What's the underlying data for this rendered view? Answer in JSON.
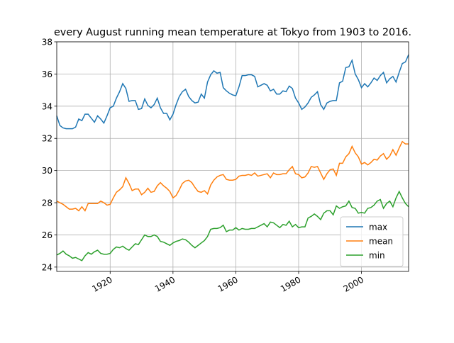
{
  "chart_data": {
    "type": "line",
    "title": "every August running mean temperature at Tokyo from 1903 to 2016.",
    "x_start": 1903,
    "series": [
      {
        "name": "max",
        "color": "#1f77b4",
        "values": [
          33.4,
          32.8,
          32.65,
          32.6,
          32.6,
          32.6,
          32.7,
          33.2,
          33.1,
          33.5,
          33.5,
          33.25,
          33.0,
          33.4,
          33.2,
          32.95,
          33.4,
          33.9,
          34.0,
          34.5,
          34.9,
          35.4,
          35.1,
          34.3,
          34.35,
          34.35,
          33.8,
          33.85,
          34.45,
          34.05,
          33.9,
          34.1,
          34.5,
          33.9,
          33.55,
          33.55,
          33.15,
          33.5,
          34.1,
          34.6,
          34.9,
          35.05,
          34.6,
          34.35,
          34.2,
          34.25,
          34.75,
          34.5,
          35.5,
          35.95,
          36.2,
          36.05,
          36.1,
          35.15,
          34.95,
          34.8,
          34.7,
          34.65,
          35.2,
          35.9,
          35.9,
          35.95,
          35.95,
          35.85,
          35.2,
          35.3,
          35.4,
          35.3,
          34.95,
          35.05,
          34.75,
          34.75,
          34.95,
          34.9,
          35.25,
          35.1,
          34.5,
          34.2,
          33.8,
          33.95,
          34.2,
          34.55,
          34.7,
          34.9,
          34.1,
          33.8,
          34.2,
          34.3,
          34.35,
          34.35,
          35.45,
          35.55,
          36.4,
          36.45,
          36.85,
          36.0,
          35.65,
          35.15,
          35.4,
          35.2,
          35.45,
          35.75,
          35.6,
          35.9,
          36.1,
          35.45,
          35.7,
          35.85,
          35.5,
          36.1,
          36.65,
          36.75,
          37.2
        ]
      },
      {
        "name": "mean",
        "color": "#ff7f0e",
        "values": [
          28.1,
          28.0,
          27.9,
          27.75,
          27.6,
          27.6,
          27.65,
          27.5,
          27.75,
          27.5,
          27.95,
          27.95,
          27.95,
          27.95,
          28.1,
          28.0,
          27.85,
          27.9,
          28.3,
          28.65,
          28.8,
          29.0,
          29.55,
          29.2,
          28.75,
          28.85,
          28.85,
          28.5,
          28.65,
          28.9,
          28.65,
          28.7,
          29.05,
          29.25,
          29.05,
          28.9,
          28.7,
          28.3,
          28.45,
          28.8,
          29.2,
          29.35,
          29.4,
          29.25,
          28.95,
          28.7,
          28.65,
          28.75,
          28.55,
          29.1,
          29.4,
          29.6,
          29.7,
          29.75,
          29.45,
          29.4,
          29.4,
          29.45,
          29.65,
          29.7,
          29.7,
          29.75,
          29.7,
          29.85,
          29.65,
          29.7,
          29.75,
          29.8,
          29.55,
          29.85,
          29.75,
          29.75,
          29.8,
          29.8,
          30.05,
          30.25,
          29.8,
          29.75,
          29.55,
          29.6,
          29.85,
          30.25,
          30.2,
          30.25,
          29.85,
          29.45,
          29.8,
          30.05,
          30.1,
          29.7,
          30.45,
          30.45,
          30.85,
          31.05,
          31.5,
          31.1,
          30.85,
          30.4,
          30.5,
          30.35,
          30.5,
          30.7,
          30.65,
          30.9,
          31.05,
          30.7,
          30.9,
          31.3,
          30.95,
          31.4,
          31.8,
          31.65,
          31.65
        ]
      },
      {
        "name": "min",
        "color": "#2ca02c",
        "values": [
          24.75,
          24.85,
          25.0,
          24.8,
          24.7,
          24.55,
          24.6,
          24.5,
          24.4,
          24.7,
          24.9,
          24.8,
          24.95,
          25.05,
          24.85,
          24.8,
          24.8,
          24.85,
          25.1,
          25.25,
          25.2,
          25.3,
          25.15,
          25.05,
          25.25,
          25.45,
          25.4,
          25.7,
          26.0,
          25.9,
          25.9,
          26.0,
          25.9,
          25.6,
          25.55,
          25.45,
          25.35,
          25.5,
          25.6,
          25.65,
          25.75,
          25.7,
          25.55,
          25.35,
          25.2,
          25.35,
          25.5,
          25.65,
          25.9,
          26.35,
          26.4,
          26.4,
          26.45,
          26.6,
          26.2,
          26.3,
          26.3,
          26.45,
          26.3,
          26.4,
          26.35,
          26.35,
          26.4,
          26.4,
          26.5,
          26.6,
          26.7,
          26.5,
          26.8,
          26.75,
          26.6,
          26.45,
          26.65,
          26.6,
          26.85,
          26.5,
          26.65,
          26.45,
          26.5,
          26.5,
          27.05,
          27.15,
          27.3,
          27.15,
          26.95,
          27.35,
          27.5,
          27.5,
          27.25,
          27.8,
          27.65,
          27.75,
          27.8,
          28.1,
          27.7,
          27.65,
          27.35,
          27.4,
          27.35,
          27.65,
          27.7,
          27.85,
          28.1,
          28.2,
          27.65,
          27.95,
          28.1,
          27.75,
          28.3,
          28.7,
          28.3,
          27.95,
          27.75
        ]
      }
    ],
    "xlim": [
      1903,
      2015
    ],
    "xticks": [
      1920,
      1940,
      1960,
      1980,
      2000
    ],
    "ylim": [
      23.73,
      38
    ],
    "yticks": [
      24,
      26,
      28,
      30,
      32,
      34,
      36,
      38
    ],
    "grid": true,
    "legend": "lower right"
  }
}
